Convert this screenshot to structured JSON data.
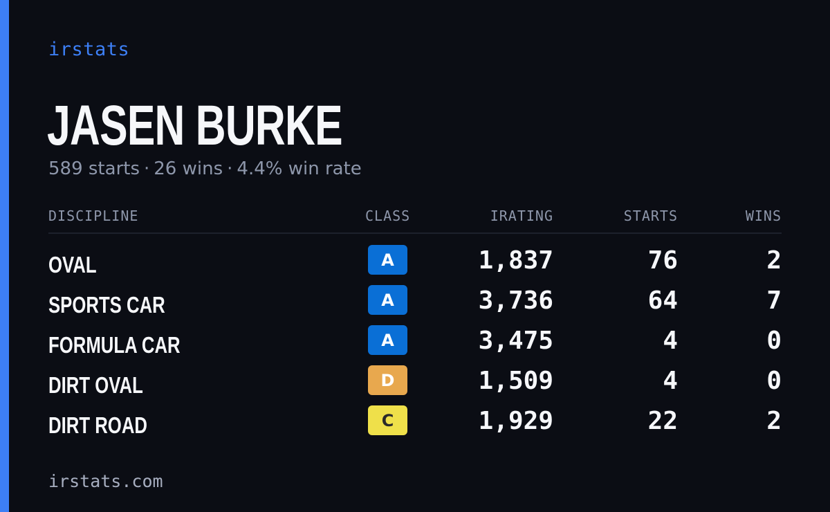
{
  "brand": "irstats",
  "driver": {
    "name": "JASEN BURKE",
    "starts": "589 starts",
    "wins": "26 wins",
    "win_rate": "4.4% win rate",
    "separator": "·"
  },
  "table": {
    "headers": {
      "discipline": "DISCIPLINE",
      "class": "CLASS",
      "irating": "IRATING",
      "starts": "STARTS",
      "wins": "WINS"
    },
    "rows": [
      {
        "discipline": "OVAL",
        "class": "A",
        "class_color": "#0a6fd6",
        "class_text_color": "#ffffff",
        "irating": "1,837",
        "starts": "76",
        "wins": "2"
      },
      {
        "discipline": "SPORTS CAR",
        "class": "A",
        "class_color": "#0a6fd6",
        "class_text_color": "#ffffff",
        "irating": "3,736",
        "starts": "64",
        "wins": "7"
      },
      {
        "discipline": "FORMULA CAR",
        "class": "A",
        "class_color": "#0a6fd6",
        "class_text_color": "#ffffff",
        "irating": "3,475",
        "starts": "4",
        "wins": "0"
      },
      {
        "discipline": "DIRT OVAL",
        "class": "D",
        "class_color": "#e8a84e",
        "class_text_color": "#ffffff",
        "irating": "1,509",
        "starts": "4",
        "wins": "0"
      },
      {
        "discipline": "DIRT ROAD",
        "class": "C",
        "class_color": "#efe04a",
        "class_text_color": "#2a2a2a",
        "irating": "1,929",
        "starts": "22",
        "wins": "2"
      }
    ]
  },
  "footer": "irstats.com",
  "colors": {
    "accent": "#3d7ff5",
    "background": "#0b0d14",
    "muted_text": "#8e97ab"
  }
}
